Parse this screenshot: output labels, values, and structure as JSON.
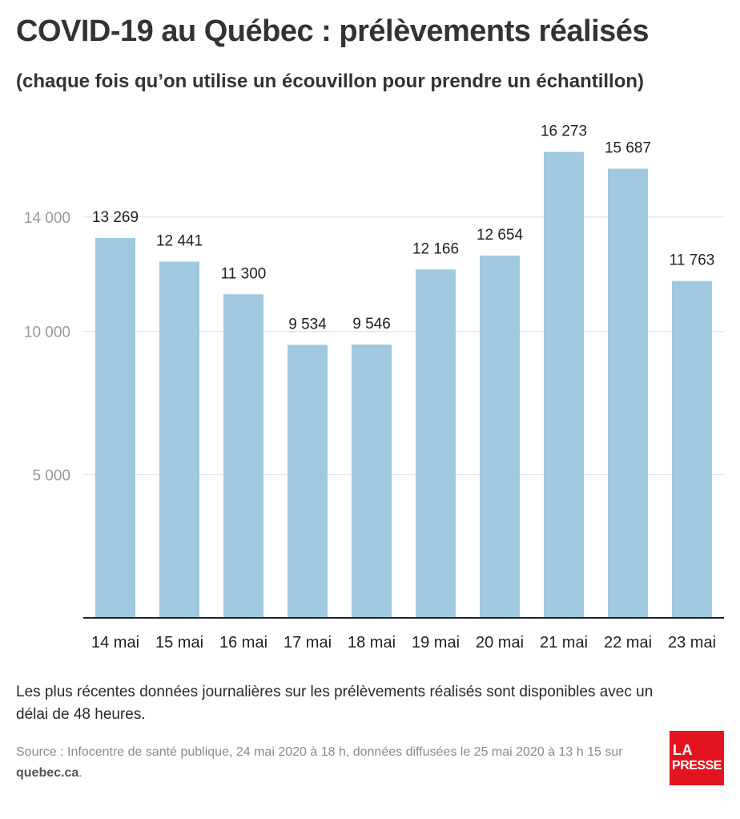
{
  "title": "COVID-19 au Québec : prélèvements réalisés",
  "subtitle": "(chaque fois qu’on utilise un écouvillon pour prendre un échantillon)",
  "note": "Les plus récentes données journalières sur les prélèvements réalisés sont disponibles avec un délai de 48 heures.",
  "source": {
    "text": "Source : Infocentre de santé publique, 24 mai 2020 à 18 h, données diffusées le 25 mai 2020 à 13 h 15 sur ",
    "site": "quebec.ca",
    "end": "."
  },
  "logo": {
    "line1": "LA",
    "line2": "PRESSE"
  },
  "colors": {
    "bar": "#a0c8e0",
    "grid": "#dddddd",
    "axis": "#222222",
    "tick_label": "#9a9a9a",
    "logo": "#e3141f"
  },
  "chart_data": {
    "type": "bar",
    "categories": [
      "14 mai",
      "15 mai",
      "16 mai",
      "17 mai",
      "18 mai",
      "19 mai",
      "20 mai",
      "21 mai",
      "22 mai",
      "23 mai"
    ],
    "values": [
      13269,
      12441,
      11300,
      9534,
      9546,
      12166,
      12654,
      16273,
      15687,
      11763
    ],
    "value_labels": [
      "13 269",
      "12 441",
      "11 300",
      "9 534",
      "9 546",
      "12 166",
      "12 654",
      "16 273",
      "15 687",
      "11 763"
    ],
    "yticks": [
      5000,
      10000,
      14000
    ],
    "ytick_labels": [
      "5 000",
      "10 000",
      "14 000"
    ],
    "ylim": [
      0,
      17000
    ],
    "grid": true,
    "xlabel": "",
    "ylabel": ""
  }
}
